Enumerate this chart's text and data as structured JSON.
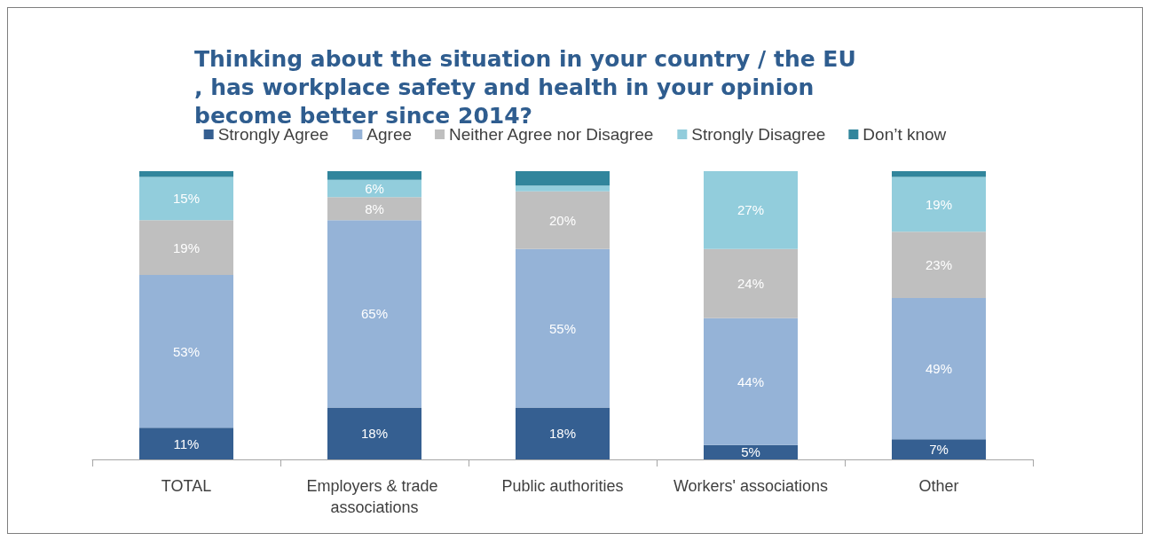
{
  "chart_data": {
    "type": "bar",
    "stacked": true,
    "title": "Thinking about the situation in your country / the EU, has workplace safety and health in your opinion become better since 2014?",
    "categories": [
      "TOTAL",
      "Employers & trade associations",
      "Public authorities",
      "Workers' associations",
      "Other"
    ],
    "series": [
      {
        "name": "Strongly Agree",
        "color": "#355f91",
        "values": [
          11,
          18,
          18,
          5,
          7
        ],
        "value_labels": [
          "11%",
          "18%",
          "18%",
          "5%",
          "7%"
        ]
      },
      {
        "name": "Agree",
        "color": "#95b3d7",
        "values": [
          53,
          65,
          55,
          44,
          49
        ],
        "value_labels": [
          "53%",
          "65%",
          "55%",
          "44%",
          "49%"
        ]
      },
      {
        "name": "Neither Agree nor Disagree",
        "color": "#bfbfbf",
        "values": [
          19,
          8,
          20,
          24,
          23
        ],
        "value_labels": [
          "19%",
          "8%",
          "20%",
          "24%",
          "23%"
        ]
      },
      {
        "name": "Strongly Disagree",
        "color": "#92cddc",
        "values": [
          15,
          6,
          2,
          27,
          19
        ],
        "value_labels": [
          "15%",
          "6%",
          null,
          "27%",
          "19%"
        ]
      },
      {
        "name": "Don’t know",
        "color": "#31859c",
        "values": [
          2,
          3,
          5,
          0,
          2
        ],
        "value_labels": [
          null,
          null,
          null,
          null,
          null
        ]
      }
    ],
    "grid": false,
    "legend": "top"
  }
}
